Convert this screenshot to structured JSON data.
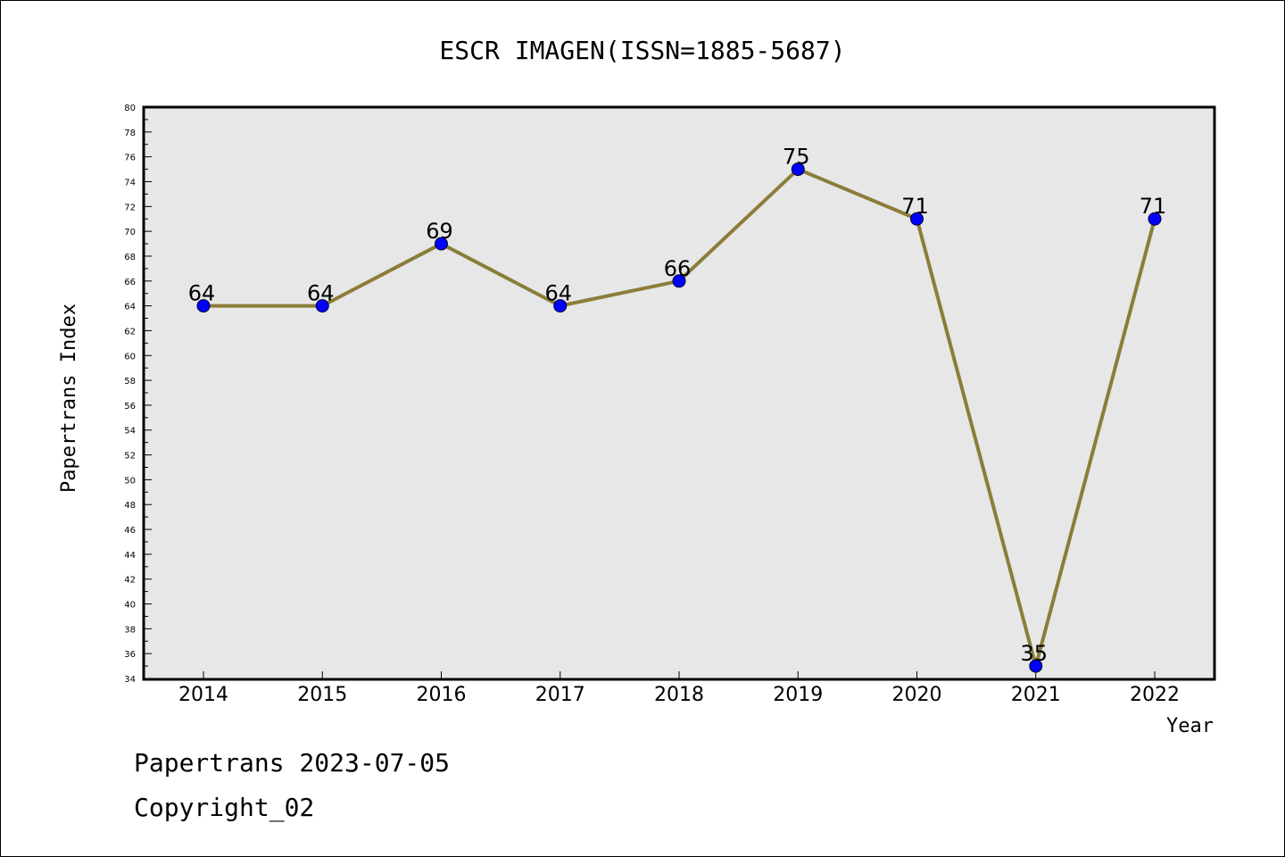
{
  "chart_data": {
    "type": "line",
    "title": "ESCR IMAGEN(ISSN=1885-5687)",
    "xlabel": "Year",
    "ylabel": "Papertrans Index",
    "categories": [
      "2014",
      "2015",
      "2016",
      "2017",
      "2018",
      "2019",
      "2020",
      "2021",
      "2022"
    ],
    "values": [
      64,
      64,
      69,
      64,
      66,
      75,
      71,
      35,
      71
    ],
    "data_labels": [
      "64",
      "64",
      "69",
      "64",
      "66",
      "75",
      "71",
      "35",
      "71"
    ],
    "ylim": [
      34,
      80
    ],
    "yticks": [
      "34",
      "36",
      "38",
      "40",
      "42",
      "44",
      "46",
      "48",
      "50",
      "52",
      "54",
      "56",
      "58",
      "60",
      "62",
      "64",
      "66",
      "68",
      "70",
      "72",
      "74",
      "76",
      "78",
      "80"
    ],
    "grid": false,
    "line_color": "#8b7d3a",
    "marker_color": "#0000ff",
    "plot_background": "#e7e7e7"
  },
  "footer": {
    "line1": "Papertrans 2023-07-05",
    "line2": "Copyright_02"
  }
}
